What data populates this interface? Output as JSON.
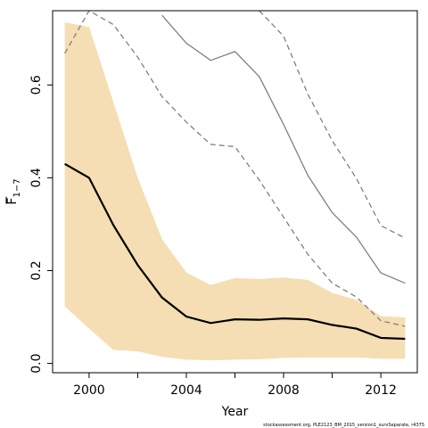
{
  "chart_data": {
    "type": "line",
    "xlabel": "Year",
    "ylabel": "F",
    "ylabel_subscript": "1−7",
    "footer": "stockassessment.org, PLE2123_BM_2015_version1_survSeparate, r4375",
    "xlim": [
      1998.5,
      2013.5
    ],
    "ylim": [
      -0.02,
      0.76
    ],
    "x_ticks": [
      2000,
      2002,
      2004,
      2006,
      2008,
      2010,
      2012
    ],
    "x_tick_labels": [
      "2000",
      "",
      "2004",
      "",
      "2008",
      "",
      "2012"
    ],
    "y_ticks": [
      0.0,
      0.2,
      0.4,
      0.6
    ],
    "y_tick_labels": [
      "0.0",
      "0.2",
      "0.4",
      "0.6"
    ],
    "grid": false,
    "band_color": "#f5deb3",
    "main_color": "#000000",
    "other_color": "#808080",
    "x": [
      1999,
      2000,
      2001,
      2002,
      2003,
      2004,
      2005,
      2006,
      2007,
      2008,
      2009,
      2010,
      2011,
      2012,
      2013
    ],
    "series": [
      {
        "role": "estimate",
        "style": "solid",
        "values": [
          0.43,
          0.4,
          0.298,
          0.212,
          0.142,
          0.101,
          0.087,
          0.095,
          0.094,
          0.097,
          0.095,
          0.083,
          0.075,
          0.055,
          0.053
        ]
      },
      {
        "role": "ci_upper",
        "values": [
          0.735,
          0.725,
          0.563,
          0.4,
          0.268,
          0.196,
          0.169,
          0.184,
          0.182,
          0.185,
          0.18,
          0.152,
          0.137,
          0.102,
          0.099
        ]
      },
      {
        "role": "ci_lower",
        "values": [
          0.123,
          0.075,
          0.029,
          0.026,
          0.014,
          0.008,
          0.007,
          0.008,
          0.009,
          0.012,
          0.013,
          0.013,
          0.013,
          0.01,
          0.01
        ]
      },
      {
        "role": "other_estimate",
        "style": "solid",
        "x": [
          2003,
          2004,
          2005,
          2006,
          2007,
          2008,
          2009,
          2010,
          2011,
          2012,
          2013
        ],
        "values": [
          0.75,
          0.69,
          0.653,
          0.672,
          0.618,
          0.515,
          0.405,
          0.325,
          0.272,
          0.195,
          0.173
        ]
      },
      {
        "role": "other_upper",
        "style": "dashed",
        "x": [
          1999,
          2000,
          2001,
          2002,
          2003,
          2004,
          2005,
          2006,
          2007,
          2008,
          2009,
          2010,
          2011,
          2012,
          2013
        ],
        "values": [
          0.668,
          0.76,
          0.73,
          0.66,
          0.575,
          0.52,
          0.472,
          0.467,
          0.395,
          0.315,
          0.235,
          0.173,
          0.143,
          0.092,
          0.08
        ],
        "note_first_dashed_points": "main dashed line drops from top"
      },
      {
        "role": "other_upper_2",
        "style": "dashed",
        "x": [
          2007,
          2008,
          2009,
          2010,
          2011,
          2012,
          2013
        ],
        "values": [
          0.76,
          0.705,
          0.58,
          0.48,
          0.398,
          0.297,
          0.27
        ]
      }
    ]
  }
}
